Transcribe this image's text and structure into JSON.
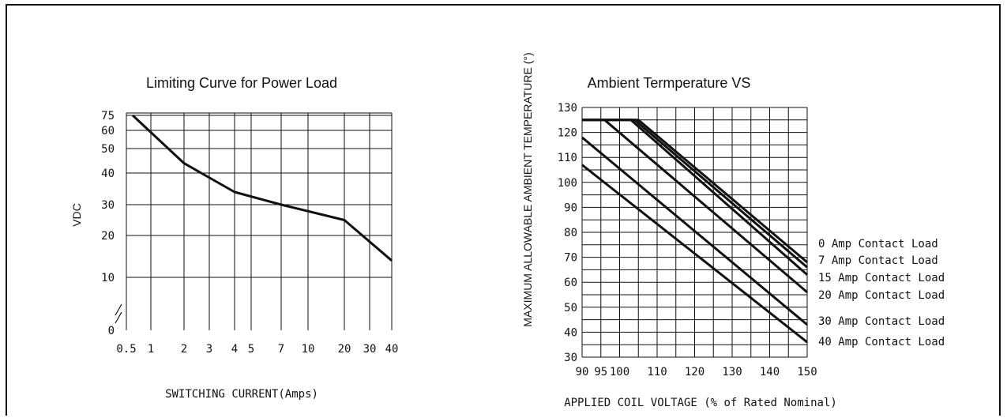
{
  "chart_data": [
    {
      "type": "line",
      "title": "Limiting Curve for Power Load",
      "xlabel": "SWITCHING CURRENT(Amps)",
      "ylabel": "VDC",
      "x_ticks": [
        "0.5",
        "1",
        "2",
        "3",
        "4",
        "5",
        "7",
        "10",
        "20",
        "30",
        "40"
      ],
      "y_ticks": [
        "75",
        "60",
        "50",
        "40",
        "30",
        "20",
        "10",
        "0"
      ],
      "grid": true,
      "series": [
        {
          "x": [
            0.6,
            2,
            4,
            7,
            20,
            40
          ],
          "y": [
            75,
            44,
            34,
            30,
            25,
            14
          ]
        }
      ]
    },
    {
      "type": "line",
      "title": "Ambient Termperature VS",
      "xlabel": "APPLIED COIL VOLTAGE (% of Rated Nominal)",
      "ylabel": "MAXIMUM ALLOWABLE AMBIENT TEMPERATURE (°)",
      "x_ticks": [
        "90",
        "95",
        "100",
        "110",
        "120",
        "130",
        "140",
        "150"
      ],
      "y_ticks": [
        "130",
        "120",
        "110",
        "100",
        "90",
        "80",
        "70",
        "60",
        "50",
        "40",
        "30"
      ],
      "xlim": [
        90,
        150
      ],
      "ylim": [
        30,
        130
      ],
      "grid": true,
      "series": [
        {
          "name": "0 Amp Contact Load",
          "x": [
            90,
            105,
            150
          ],
          "y": [
            125,
            125,
            68
          ]
        },
        {
          "name": "7 Amp Contact Load",
          "x": [
            90,
            104,
            150
          ],
          "y": [
            125,
            125,
            66
          ]
        },
        {
          "name": "15 Amp Contact Load",
          "x": [
            90,
            103,
            150
          ],
          "y": [
            125,
            125,
            63
          ]
        },
        {
          "name": "20 Amp Contact Load",
          "x": [
            90,
            96,
            150
          ],
          "y": [
            125,
            125,
            56
          ]
        },
        {
          "name": "30 Amp Contact Load",
          "x": [
            90,
            150
          ],
          "y": [
            118,
            43
          ]
        },
        {
          "name": "40 Amp Contact Load",
          "x": [
            90,
            150
          ],
          "y": [
            107,
            36
          ]
        }
      ]
    }
  ]
}
